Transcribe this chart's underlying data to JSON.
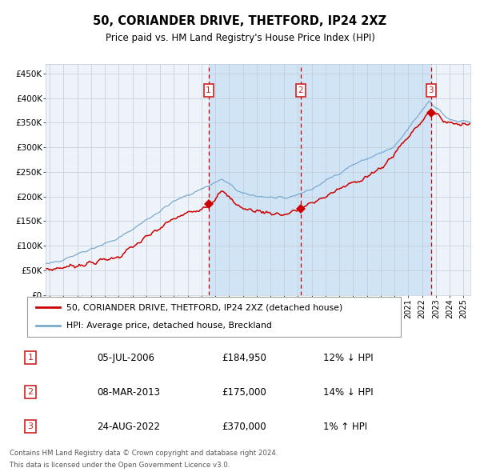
{
  "title": "50, CORIANDER DRIVE, THETFORD, IP24 2XZ",
  "subtitle": "Price paid vs. HM Land Registry's House Price Index (HPI)",
  "legend_red": "50, CORIANDER DRIVE, THETFORD, IP24 2XZ (detached house)",
  "legend_blue": "HPI: Average price, detached house, Breckland",
  "footer1": "Contains HM Land Registry data © Crown copyright and database right 2024.",
  "footer2": "This data is licensed under the Open Government Licence v3.0.",
  "transactions": [
    {
      "num": 1,
      "date": "05-JUL-2006",
      "price": 184950,
      "price_str": "£184,950",
      "year": 2006.51,
      "pct": "12%",
      "dir": "↓"
    },
    {
      "num": 2,
      "date": "08-MAR-2013",
      "price": 175000,
      "price_str": "£175,000",
      "year": 2013.18,
      "pct": "14%",
      "dir": "↓"
    },
    {
      "num": 3,
      "date": "24-AUG-2022",
      "price": 370000,
      "price_str": "£370,000",
      "year": 2022.64,
      "pct": "1%",
      "dir": "↑"
    }
  ],
  "ylim": [
    0,
    470000
  ],
  "yticks": [
    0,
    50000,
    100000,
    150000,
    200000,
    250000,
    300000,
    350000,
    400000,
    450000
  ],
  "xlim_start": 1994.7,
  "xlim_end": 2025.5,
  "plot_bg": "#eef3fa",
  "shaded_color": "#d0e4f5",
  "grid_color": "#c0ccd8",
  "red_color": "#cc0000",
  "blue_color": "#7aabcf",
  "label_box_color": "#cc2222",
  "title_fontsize": 10.5,
  "subtitle_fontsize": 8.5
}
